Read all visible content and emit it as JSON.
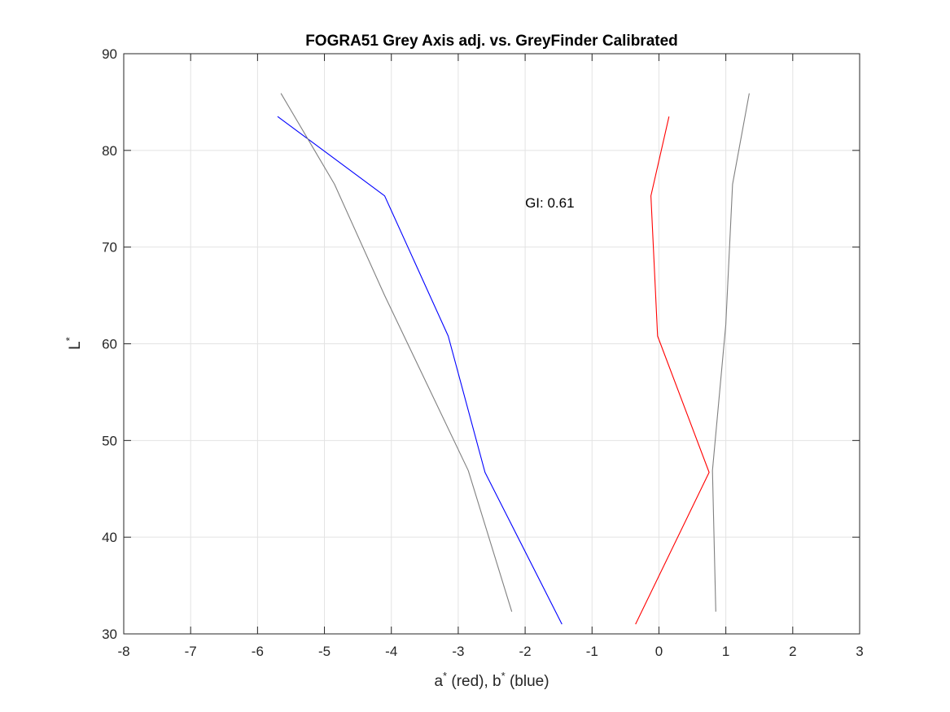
{
  "chart_data": {
    "type": "line",
    "title": "FOGRA51 Grey Axis adj. vs. GreyFinder Calibrated",
    "xlabel": {
      "a": "a",
      "a_sup": "*",
      "a_rest": " (red), b",
      "b_sup": "*",
      "b_rest": " (blue)"
    },
    "ylabel": {
      "base": "L",
      "sup": "*"
    },
    "xlim": [
      -8,
      3
    ],
    "ylim": [
      30,
      90
    ],
    "xticks": [
      -8,
      -7,
      -6,
      -5,
      -4,
      -3,
      -2,
      -1,
      0,
      1,
      2,
      3
    ],
    "yticks": [
      30,
      40,
      50,
      60,
      70,
      80,
      90
    ],
    "grid": true,
    "annotation": {
      "text": "GI: 0.61",
      "x": -2.0,
      "y": 74.5
    },
    "series": [
      {
        "color": "#0000ff",
        "x": [
          -1.45,
          -2.6,
          -3.15,
          -4.1,
          -5.7
        ],
        "y": [
          31.0,
          46.7,
          60.8,
          75.3,
          83.5
        ]
      },
      {
        "color": "#ff0000",
        "x": [
          -0.35,
          0.75,
          -0.02,
          -0.12,
          0.15
        ],
        "y": [
          31.0,
          46.7,
          60.8,
          75.3,
          83.5
        ]
      },
      {
        "color": "#808080",
        "x": [
          -2.2,
          -2.85,
          -4.1,
          -4.85,
          -5.65
        ],
        "y": [
          32.3,
          46.9,
          65.0,
          76.5,
          85.9
        ]
      },
      {
        "color": "#808080",
        "x": [
          0.85,
          0.8,
          1.0,
          1.1,
          1.35
        ],
        "y": [
          32.3,
          46.9,
          62.0,
          76.5,
          85.9
        ]
      }
    ]
  }
}
